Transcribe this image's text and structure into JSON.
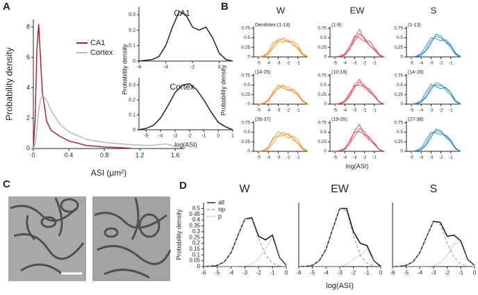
{
  "chart_data": [
    {
      "type": "line",
      "panel": "A",
      "xlabel": "ASI (μm²)",
      "ylabel": "Probability density",
      "x": [
        0,
        0.02,
        0.04,
        0.06,
        0.08,
        0.1,
        0.15,
        0.2,
        0.3,
        0.4,
        0.6,
        0.8,
        1.0,
        1.1,
        1.3,
        1.5,
        1.6
      ],
      "series": [
        {
          "name": "CA1",
          "color": "#a4262c",
          "values": [
            0,
            2,
            6.5,
            8.2,
            6,
            3.8,
            1.8,
            1.2,
            0.8,
            0.5,
            0.2,
            0.1,
            0.05,
            0.02,
            null,
            null,
            null
          ]
        },
        {
          "name": "Cortex",
          "color": "#b8b8b8",
          "values": [
            0,
            0.3,
            1.2,
            2.5,
            3.2,
            3.5,
            3.2,
            2.5,
            1.6,
            1.1,
            0.6,
            0.4,
            0.3,
            0.25,
            0.2,
            0.3,
            0.15
          ]
        }
      ],
      "xlim": [
        0,
        1.7
      ],
      "xticks": [
        0,
        0.4,
        0.8,
        1.2,
        1.6
      ],
      "ylim": [
        0,
        8.5
      ],
      "yticks": [
        0,
        2,
        4,
        6,
        8
      ],
      "legend": "upper center"
    },
    {
      "type": "line",
      "title": "CA1",
      "ylabel": "Probability density",
      "x": [
        -6,
        -5,
        -4.5,
        -4,
        -3.5,
        -3,
        -2.5,
        -2,
        -1.5,
        -1,
        -0.5,
        0,
        0.5,
        1
      ],
      "series": [
        {
          "color": "#222222",
          "values": [
            0,
            0.01,
            0.03,
            0.1,
            0.22,
            0.32,
            0.3,
            0.22,
            0.2,
            0.22,
            0.15,
            0.05,
            0.01,
            0
          ]
        }
      ],
      "xlim": [
        -6,
        1
      ],
      "xticks": [
        -6,
        -4,
        -2,
        0
      ],
      "ylim": [
        0,
        0.35
      ],
      "yticks": [
        0,
        0.1,
        0.2,
        0.3
      ]
    },
    {
      "type": "line",
      "title": "Cortex",
      "xlabel": "log(ASI)",
      "x": [
        -5.5,
        -5,
        -4.5,
        -4,
        -3.5,
        -3,
        -2.5,
        -2,
        -1.5,
        -1,
        -0.5,
        0,
        0.5,
        1
      ],
      "series": [
        {
          "color": "#222222",
          "values": [
            0,
            0.01,
            0.03,
            0.08,
            0.16,
            0.25,
            0.3,
            0.31,
            0.27,
            0.2,
            0.12,
            0.05,
            0.02,
            0
          ]
        }
      ],
      "xlim": [
        -5.5,
        1
      ],
      "xticks": [
        -5,
        -4,
        -3,
        -2,
        -1,
        0,
        1
      ],
      "ylim": [
        0,
        0.35
      ],
      "yticks": [
        0,
        0.1,
        0.2,
        0.3
      ]
    },
    {
      "type": "small-multiples",
      "panel": "B",
      "xlabel": "log(ASI)",
      "ylabel": "Probability density",
      "x": [
        -5,
        -4.5,
        -4,
        -3.5,
        -3,
        -2.5,
        -2,
        -1.5,
        -1,
        -0.5,
        0
      ],
      "xlim": [
        -5.5,
        0
      ],
      "xticks": [
        -5,
        -4,
        -3,
        -2,
        -1
      ],
      "ylim": [
        0,
        0.8
      ],
      "yticks": [
        0,
        0.25,
        0.5,
        0.75
      ],
      "columns": [
        {
          "title": "W",
          "color": "#f0922b",
          "panels": [
            {
              "label": "Dendrites (1-13)",
              "series": [
                [
                  0,
                  0.02,
                  0.1,
                  0.3,
                  0.48,
                  0.45,
                  0.38,
                  0.42,
                  0.3,
                  0.08,
                  0.01
                ],
                [
                  0,
                  0.03,
                  0.14,
                  0.38,
                  0.42,
                  0.38,
                  0.44,
                  0.36,
                  0.2,
                  0.05,
                  0
                ],
                [
                  0,
                  0.01,
                  0.07,
                  0.24,
                  0.4,
                  0.5,
                  0.42,
                  0.3,
                  0.24,
                  0.07,
                  0
                ]
              ]
            },
            {
              "label": "(14-25)",
              "series": [
                [
                  0,
                  0.02,
                  0.12,
                  0.34,
                  0.5,
                  0.42,
                  0.36,
                  0.4,
                  0.28,
                  0.07,
                  0.01
                ],
                [
                  0,
                  0.03,
                  0.1,
                  0.3,
                  0.4,
                  0.46,
                  0.45,
                  0.34,
                  0.22,
                  0.06,
                  0
                ],
                [
                  0,
                  0.01,
                  0.08,
                  0.26,
                  0.44,
                  0.5,
                  0.38,
                  0.32,
                  0.26,
                  0.09,
                  0.01
                ]
              ]
            },
            {
              "label": "(26-37)",
              "series": [
                [
                  0,
                  0.02,
                  0.1,
                  0.32,
                  0.52,
                  0.44,
                  0.34,
                  0.4,
                  0.3,
                  0.08,
                  0.01
                ],
                [
                  0,
                  0.02,
                  0.12,
                  0.36,
                  0.4,
                  0.4,
                  0.46,
                  0.36,
                  0.2,
                  0.05,
                  0
                ],
                [
                  0,
                  0.01,
                  0.06,
                  0.22,
                  0.4,
                  0.5,
                  0.44,
                  0.3,
                  0.22,
                  0.07,
                  0
                ]
              ]
            }
          ]
        },
        {
          "title": "EW",
          "color": "#e0404a",
          "panels": [
            {
              "label": "(1-9)",
              "series": [
                [
                  0,
                  0.01,
                  0.05,
                  0.2,
                  0.5,
                  0.72,
                  0.45,
                  0.3,
                  0.2,
                  0.05,
                  0
                ],
                [
                  0,
                  0.02,
                  0.08,
                  0.28,
                  0.55,
                  0.5,
                  0.4,
                  0.42,
                  0.25,
                  0.06,
                  0
                ],
                [
                  0,
                  0.01,
                  0.06,
                  0.22,
                  0.42,
                  0.6,
                  0.5,
                  0.3,
                  0.18,
                  0.04,
                  0
                ]
              ]
            },
            {
              "label": "(10-18)",
              "series": [
                [
                  0,
                  0.01,
                  0.06,
                  0.24,
                  0.52,
                  0.65,
                  0.42,
                  0.32,
                  0.2,
                  0.05,
                  0
                ],
                [
                  0,
                  0.02,
                  0.1,
                  0.3,
                  0.48,
                  0.5,
                  0.45,
                  0.4,
                  0.24,
                  0.06,
                  0
                ],
                [
                  0,
                  0.01,
                  0.05,
                  0.2,
                  0.44,
                  0.58,
                  0.5,
                  0.34,
                  0.2,
                  0.05,
                  0
                ]
              ]
            },
            {
              "label": "(19-26)",
              "series": [
                [
                  0,
                  0.01,
                  0.05,
                  0.22,
                  0.55,
                  0.7,
                  0.42,
                  0.3,
                  0.2,
                  0.05,
                  0
                ],
                [
                  0,
                  0.02,
                  0.08,
                  0.3,
                  0.5,
                  0.52,
                  0.44,
                  0.38,
                  0.22,
                  0.05,
                  0
                ],
                [
                  0,
                  0.01,
                  0.06,
                  0.2,
                  0.4,
                  0.6,
                  0.52,
                  0.32,
                  0.18,
                  0.04,
                  0
                ]
              ]
            }
          ]
        },
        {
          "title": "S",
          "color": "#1f83c4",
          "panels": [
            {
              "label": "(1-13)",
              "series": [
                [
                  0,
                  0.01,
                  0.06,
                  0.2,
                  0.42,
                  0.55,
                  0.5,
                  0.4,
                  0.3,
                  0.1,
                  0.01
                ],
                [
                  0,
                  0.02,
                  0.1,
                  0.3,
                  0.5,
                  0.48,
                  0.42,
                  0.45,
                  0.32,
                  0.08,
                  0
                ],
                [
                  0,
                  0.01,
                  0.04,
                  0.16,
                  0.35,
                  0.6,
                  0.55,
                  0.38,
                  0.25,
                  0.06,
                  0
                ]
              ]
            },
            {
              "label": "(14-26)",
              "series": [
                [
                  0,
                  0.01,
                  0.06,
                  0.22,
                  0.45,
                  0.5,
                  0.48,
                  0.42,
                  0.3,
                  0.09,
                  0.01
                ],
                [
                  0,
                  0.02,
                  0.1,
                  0.32,
                  0.52,
                  0.46,
                  0.4,
                  0.44,
                  0.3,
                  0.07,
                  0
                ],
                [
                  0,
                  0.01,
                  0.05,
                  0.18,
                  0.38,
                  0.56,
                  0.52,
                  0.36,
                  0.24,
                  0.06,
                  0
                ]
              ]
            },
            {
              "label": "(27-38)",
              "series": [
                [
                  0,
                  0.01,
                  0.05,
                  0.2,
                  0.44,
                  0.54,
                  0.5,
                  0.4,
                  0.28,
                  0.08,
                  0
                ],
                [
                  0,
                  0.02,
                  0.09,
                  0.3,
                  0.5,
                  0.48,
                  0.44,
                  0.42,
                  0.3,
                  0.07,
                  0
                ],
                [
                  0,
                  0.01,
                  0.04,
                  0.16,
                  0.36,
                  0.58,
                  0.54,
                  0.36,
                  0.24,
                  0.06,
                  0
                ]
              ]
            }
          ]
        }
      ]
    },
    {
      "type": "image",
      "panel": "C"
    },
    {
      "type": "line",
      "panel": "D",
      "title": "W",
      "ylabel": "Probability density",
      "x": [
        -6,
        -5.5,
        -5,
        -4.5,
        -4,
        -3.5,
        -3,
        -2.5,
        -2,
        -1.5,
        -1,
        -0.5,
        0
      ],
      "series": [
        {
          "name": "all",
          "color": "#111111",
          "dash": "solid",
          "values": [
            0,
            0.003,
            0.01,
            0.04,
            0.12,
            0.27,
            0.41,
            0.42,
            0.26,
            0.23,
            0.27,
            0.08,
            0.01
          ]
        },
        {
          "name": "np",
          "color": "#999999",
          "dash": "dashed",
          "values": [
            0,
            0.003,
            0.01,
            0.04,
            0.12,
            0.27,
            0.41,
            0.41,
            0.24,
            0.1,
            0.03,
            0.005,
            0
          ]
        },
        {
          "name": "p",
          "color": "#999999",
          "dash": "dotted",
          "values": [
            0,
            0,
            0,
            0,
            0,
            0,
            0.003,
            0.02,
            0.07,
            0.15,
            0.25,
            0.08,
            0.01
          ]
        }
      ],
      "xlim": [
        -6,
        0
      ],
      "xticks": [
        -6,
        -5,
        -4,
        -3,
        -2,
        -1,
        0
      ],
      "ylim": [
        0,
        0.55
      ],
      "yticks": [
        0,
        0.05,
        0.1,
        0.15,
        0.2,
        0.25,
        0.3,
        0.35,
        0.4,
        0.45,
        0.5
      ],
      "legend": "upper left"
    },
    {
      "type": "line",
      "title": "EW",
      "xlabel": "log(ASI)",
      "x": [
        -6,
        -5.5,
        -5,
        -4.5,
        -4,
        -3.5,
        -3,
        -2.5,
        -2,
        -1.5,
        -1,
        -0.5,
        0
      ],
      "series": [
        {
          "color": "#111111",
          "dash": "solid",
          "values": [
            0,
            0.002,
            0.01,
            0.05,
            0.15,
            0.33,
            0.5,
            0.5,
            0.3,
            0.2,
            0.18,
            0.05,
            0
          ]
        },
        {
          "color": "#999999",
          "dash": "dashed",
          "values": [
            0,
            0.002,
            0.01,
            0.05,
            0.15,
            0.33,
            0.5,
            0.48,
            0.26,
            0.1,
            0.03,
            0.005,
            0
          ]
        },
        {
          "color": "#999999",
          "dash": "dotted",
          "values": [
            0,
            0,
            0,
            0,
            0,
            0,
            0,
            0.02,
            0.06,
            0.1,
            0.15,
            0.05,
            0.01
          ]
        }
      ],
      "xlim": [
        -6,
        0
      ],
      "xticks": [
        -6,
        -5,
        -4,
        -3,
        -2,
        -1,
        0
      ],
      "ylim": [
        0,
        0.55
      ]
    },
    {
      "type": "line",
      "title": "S",
      "x": [
        -6,
        -5.5,
        -5,
        -4.5,
        -4,
        -3.5,
        -3,
        -2.5,
        -2,
        -1.5,
        -1,
        -0.5,
        0
      ],
      "series": [
        {
          "color": "#111111",
          "dash": "solid",
          "values": [
            0,
            0.002,
            0.01,
            0.04,
            0.12,
            0.26,
            0.39,
            0.38,
            0.26,
            0.27,
            0.22,
            0.06,
            0.01
          ]
        },
        {
          "color": "#999999",
          "dash": "dashed",
          "values": [
            0,
            0.002,
            0.01,
            0.04,
            0.12,
            0.26,
            0.39,
            0.36,
            0.2,
            0.08,
            0.02,
            0.003,
            0
          ]
        },
        {
          "color": "#999999",
          "dash": "dotted",
          "values": [
            0,
            0,
            0,
            0,
            0,
            0,
            0.003,
            0.03,
            0.09,
            0.2,
            0.2,
            0.06,
            0.01
          ]
        }
      ],
      "xlim": [
        -6,
        0
      ],
      "xticks": [
        -6,
        -5,
        -4,
        -3,
        -2,
        -1,
        0
      ],
      "ylim": [
        0,
        0.55
      ]
    }
  ]
}
